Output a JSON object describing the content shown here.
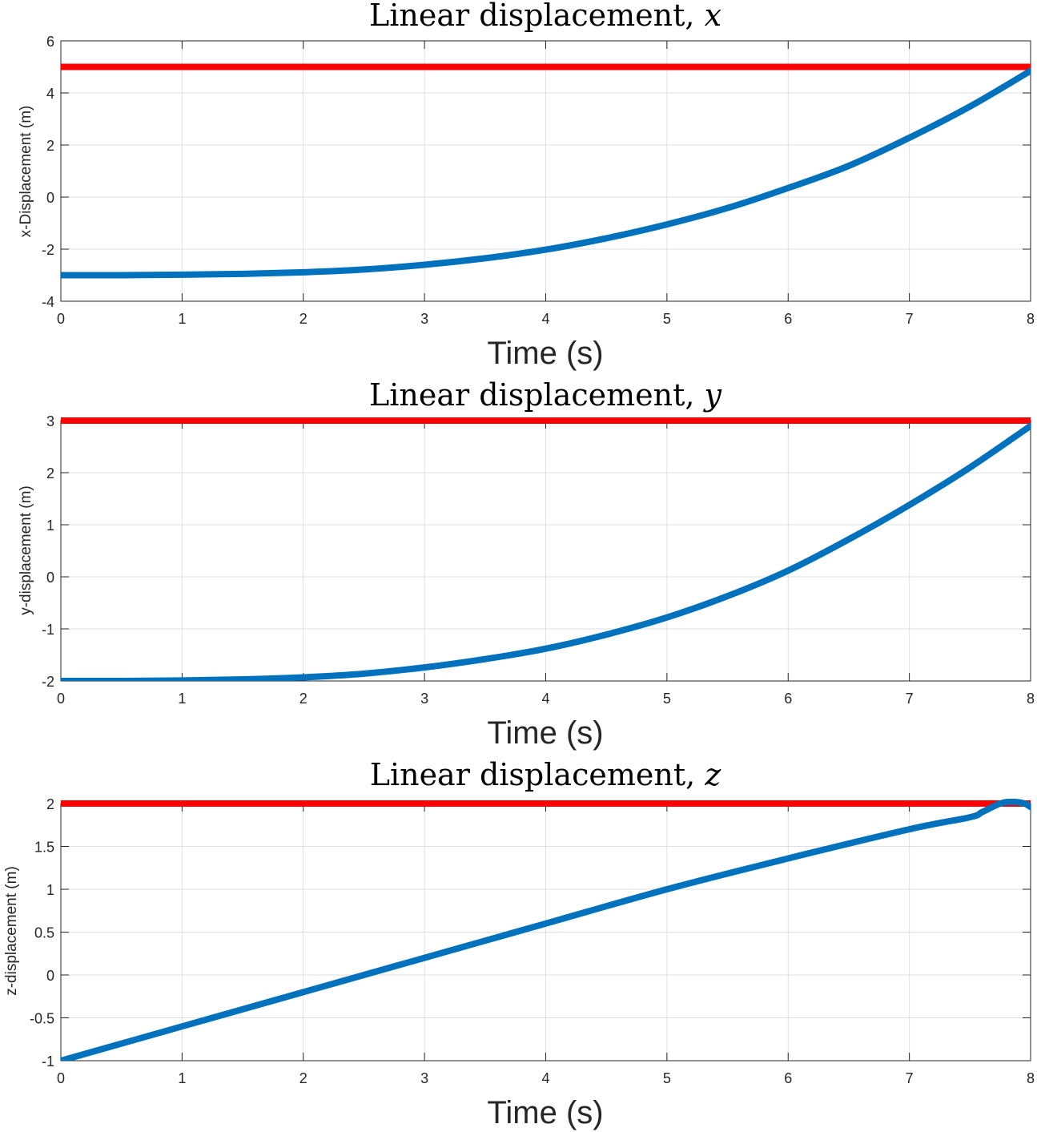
{
  "chart_data": [
    {
      "type": "line",
      "title": "Linear displacement, ",
      "title_var": "x",
      "xlabel": "Time (s)",
      "ylabel": "x-Displacement (m)",
      "xlim": [
        0,
        8
      ],
      "ylim": [
        -4,
        6
      ],
      "xticks": [
        0,
        1,
        2,
        3,
        4,
        5,
        6,
        7,
        8
      ],
      "yticks": [
        -4,
        -2,
        0,
        2,
        4,
        6
      ],
      "grid": true,
      "series": [
        {
          "color": "#ff0000",
          "x": [
            0,
            8
          ],
          "y": [
            5,
            5
          ]
        },
        {
          "color": "#0072bd",
          "x": [
            0,
            0.5,
            1,
            1.5,
            2,
            2.5,
            3,
            3.5,
            4,
            4.5,
            5,
            5.5,
            6,
            6.5,
            7,
            7.5,
            8
          ],
          "y": [
            -3.0,
            -3.0,
            -2.98,
            -2.95,
            -2.89,
            -2.78,
            -2.6,
            -2.35,
            -2.02,
            -1.58,
            -1.05,
            -0.42,
            0.35,
            1.2,
            2.28,
            3.48,
            4.85
          ]
        }
      ]
    },
    {
      "type": "line",
      "title": "Linear displacement, ",
      "title_var": "y",
      "xlabel": "Time (s)",
      "ylabel": "y-displacement (m)",
      "xlim": [
        0,
        8
      ],
      "ylim": [
        -2,
        3
      ],
      "xticks": [
        0,
        1,
        2,
        3,
        4,
        5,
        6,
        7,
        8
      ],
      "yticks": [
        -2,
        -1,
        0,
        1,
        2,
        3
      ],
      "grid": true,
      "series": [
        {
          "color": "#ff0000",
          "x": [
            0,
            8
          ],
          "y": [
            3,
            3
          ]
        },
        {
          "color": "#0072bd",
          "x": [
            0,
            0.5,
            1,
            1.5,
            2,
            2.5,
            3,
            3.5,
            4,
            4.5,
            5,
            5.5,
            6,
            6.5,
            7,
            7.5,
            8
          ],
          "y": [
            -2.0,
            -2.0,
            -1.99,
            -1.97,
            -1.93,
            -1.86,
            -1.74,
            -1.58,
            -1.38,
            -1.11,
            -0.78,
            -0.37,
            0.12,
            0.72,
            1.38,
            2.1,
            2.9
          ]
        }
      ]
    },
    {
      "type": "line",
      "title": "Linear displacement, ",
      "title_var": "z",
      "xlabel": "Time (s)",
      "ylabel": "z-displacement (m)",
      "xlim": [
        0,
        8
      ],
      "ylim": [
        -1,
        2
      ],
      "xticks": [
        0,
        1,
        2,
        3,
        4,
        5,
        6,
        7,
        8
      ],
      "yticks": [
        -1,
        -0.5,
        0,
        0.5,
        1,
        1.5,
        2
      ],
      "grid": true,
      "series": [
        {
          "color": "#ff0000",
          "x": [
            0,
            8
          ],
          "y": [
            2,
            2
          ]
        },
        {
          "color": "#0072bd",
          "x": [
            0,
            1,
            2,
            3,
            4,
            5,
            6,
            7,
            7.5,
            7.6,
            7.75,
            7.85,
            7.95,
            8
          ],
          "y": [
            -1.0,
            -0.6,
            -0.2,
            0.2,
            0.6,
            1.0,
            1.36,
            1.7,
            1.84,
            1.9,
            2.0,
            2.02,
            2.0,
            1.96
          ]
        }
      ]
    }
  ]
}
